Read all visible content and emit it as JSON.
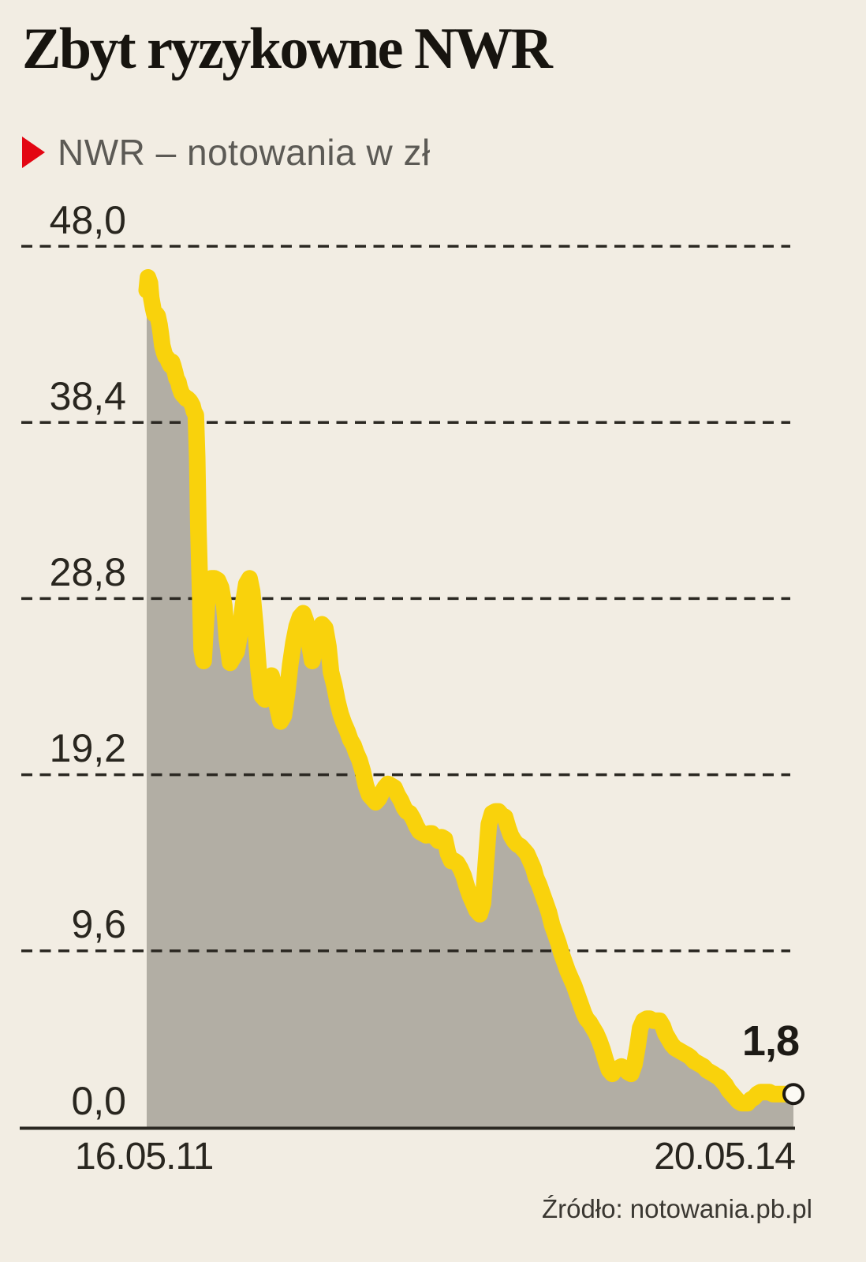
{
  "header": {
    "title": "Zbyt ryzykowne NWR"
  },
  "legend": {
    "label": "NWR – notowania w zł"
  },
  "source": "Źródło: notowania.pb.pl",
  "colors": {
    "background": "#F2EDE3",
    "line_yellow": "#F9D20C",
    "area_gray": "#B2AEA4",
    "bullet_red": "#E30613",
    "ink": "#29261F"
  },
  "chart_data": {
    "type": "area",
    "title": "NWR – notowania w zł",
    "series_name": "NWR",
    "ylabel": "notowania w zł",
    "ylim": [
      0,
      48
    ],
    "grid": "dashed-horizontal",
    "yticks": [
      {
        "value": 48.0,
        "label": "48,0"
      },
      {
        "value": 38.4,
        "label": "38,4"
      },
      {
        "value": 28.8,
        "label": "28,8"
      },
      {
        "value": 19.2,
        "label": "19,2"
      },
      {
        "value": 9.6,
        "label": "9,6"
      },
      {
        "value": 0.0,
        "label": "0,0"
      }
    ],
    "x_start_label": "16.05.11",
    "x_end_label": "20.05.14",
    "end_value": 1.8,
    "end_value_label": "1,8",
    "points": [
      [
        0,
        45.6
      ],
      [
        0.002,
        46.3
      ],
      [
        0.005,
        46
      ],
      [
        0.007,
        45.2
      ],
      [
        0.01,
        44.6
      ],
      [
        0.012,
        44.3
      ],
      [
        0.015,
        44.3
      ],
      [
        0.017,
        44.2
      ],
      [
        0.02,
        43.7
      ],
      [
        0.022,
        43.2
      ],
      [
        0.024,
        42.6
      ],
      [
        0.027,
        42.2
      ],
      [
        0.029,
        42
      ],
      [
        0.032,
        41.9
      ],
      [
        0.034,
        41.7
      ],
      [
        0.037,
        41.5
      ],
      [
        0.039,
        41.7
      ],
      [
        0.041,
        41.5
      ],
      [
        0.044,
        41.1
      ],
      [
        0.046,
        40.8
      ],
      [
        0.049,
        40.6
      ],
      [
        0.051,
        40.3
      ],
      [
        0.054,
        40
      ],
      [
        0.056,
        39.9
      ],
      [
        0.059,
        39.8
      ],
      [
        0.061,
        39.7
      ],
      [
        0.063,
        39.7
      ],
      [
        0.066,
        39.6
      ],
      [
        0.068,
        39.5
      ],
      [
        0.071,
        39.3
      ],
      [
        0.073,
        39
      ],
      [
        0.076,
        38.8
      ],
      [
        0.078,
        36.5
      ],
      [
        0.08,
        32.5
      ],
      [
        0.083,
        28.5
      ],
      [
        0.085,
        26
      ],
      [
        0.088,
        25.4
      ],
      [
        0.09,
        26.6
      ],
      [
        0.093,
        28.4
      ],
      [
        0.095,
        29.4
      ],
      [
        0.098,
        29.8
      ],
      [
        0.1,
        29.9
      ],
      [
        0.105,
        29.9
      ],
      [
        0.11,
        29.8
      ],
      [
        0.115,
        29.4
      ],
      [
        0.12,
        28.4
      ],
      [
        0.124,
        26.6
      ],
      [
        0.129,
        25.3
      ],
      [
        0.134,
        25.6
      ],
      [
        0.139,
        25.9
      ],
      [
        0.144,
        26.9
      ],
      [
        0.149,
        28.5
      ],
      [
        0.154,
        29.6
      ],
      [
        0.159,
        29.9
      ],
      [
        0.163,
        29.2
      ],
      [
        0.168,
        27.3
      ],
      [
        0.173,
        24.9
      ],
      [
        0.178,
        23.5
      ],
      [
        0.183,
        23.3
      ],
      [
        0.188,
        24.2
      ],
      [
        0.193,
        24.6
      ],
      [
        0.198,
        23.9
      ],
      [
        0.202,
        22.9
      ],
      [
        0.207,
        22.1
      ],
      [
        0.212,
        22.4
      ],
      [
        0.217,
        23.6
      ],
      [
        0.222,
        25.2
      ],
      [
        0.227,
        26.4
      ],
      [
        0.232,
        27.3
      ],
      [
        0.237,
        27.8
      ],
      [
        0.242,
        28
      ],
      [
        0.246,
        27.6
      ],
      [
        0.251,
        26.4
      ],
      [
        0.256,
        25.4
      ],
      [
        0.261,
        26.2
      ],
      [
        0.266,
        27.1
      ],
      [
        0.271,
        27.4
      ],
      [
        0.276,
        27.2
      ],
      [
        0.281,
        26.2
      ],
      [
        0.285,
        24.8
      ],
      [
        0.29,
        24.1
      ],
      [
        0.295,
        23.2
      ],
      [
        0.3,
        22.5
      ],
      [
        0.305,
        22
      ],
      [
        0.31,
        21.6
      ],
      [
        0.315,
        21.1
      ],
      [
        0.32,
        20.8
      ],
      [
        0.324,
        20.4
      ],
      [
        0.329,
        20
      ],
      [
        0.334,
        19.4
      ],
      [
        0.339,
        18.6
      ],
      [
        0.344,
        18.1
      ],
      [
        0.349,
        17.9
      ],
      [
        0.354,
        17.7
      ],
      [
        0.359,
        17.9
      ],
      [
        0.363,
        18.2
      ],
      [
        0.368,
        18.5
      ],
      [
        0.373,
        18.7
      ],
      [
        0.378,
        18.6
      ],
      [
        0.383,
        18.5
      ],
      [
        0.388,
        18.1
      ],
      [
        0.393,
        17.8
      ],
      [
        0.398,
        17.4
      ],
      [
        0.402,
        17.2
      ],
      [
        0.407,
        17.1
      ],
      [
        0.412,
        16.8
      ],
      [
        0.417,
        16.4
      ],
      [
        0.422,
        16.1
      ],
      [
        0.427,
        16
      ],
      [
        0.432,
        15.9
      ],
      [
        0.437,
        16
      ],
      [
        0.441,
        16
      ],
      [
        0.446,
        15.8
      ],
      [
        0.451,
        15.6
      ],
      [
        0.456,
        15.8
      ],
      [
        0.461,
        15.7
      ],
      [
        0.466,
        14.9
      ],
      [
        0.471,
        14.5
      ],
      [
        0.476,
        14.5
      ],
      [
        0.48,
        14.4
      ],
      [
        0.485,
        14.1
      ],
      [
        0.49,
        13.7
      ],
      [
        0.495,
        13.1
      ],
      [
        0.5,
        12.6
      ],
      [
        0.505,
        12.2
      ],
      [
        0.51,
        11.8
      ],
      [
        0.515,
        11.6
      ],
      [
        0.52,
        12.2
      ],
      [
        0.524,
        14.2
      ],
      [
        0.529,
        16.5
      ],
      [
        0.534,
        17.1
      ],
      [
        0.539,
        17.2
      ],
      [
        0.544,
        17.2
      ],
      [
        0.549,
        17
      ],
      [
        0.554,
        16.9
      ],
      [
        0.559,
        16.3
      ],
      [
        0.563,
        15.9
      ],
      [
        0.568,
        15.6
      ],
      [
        0.573,
        15.4
      ],
      [
        0.578,
        15.3
      ],
      [
        0.583,
        15.1
      ],
      [
        0.588,
        14.9
      ],
      [
        0.593,
        14.5
      ],
      [
        0.598,
        14.1
      ],
      [
        0.602,
        13.6
      ],
      [
        0.607,
        13.2
      ],
      [
        0.612,
        12.7
      ],
      [
        0.617,
        12.2
      ],
      [
        0.622,
        11.7
      ],
      [
        0.627,
        11
      ],
      [
        0.632,
        10.5
      ],
      [
        0.637,
        10
      ],
      [
        0.641,
        9.5
      ],
      [
        0.646,
        9
      ],
      [
        0.651,
        8.5
      ],
      [
        0.656,
        8.1
      ],
      [
        0.661,
        7.7
      ],
      [
        0.666,
        7.2
      ],
      [
        0.671,
        6.7
      ],
      [
        0.676,
        6.2
      ],
      [
        0.68,
        5.9
      ],
      [
        0.685,
        5.7
      ],
      [
        0.69,
        5.4
      ],
      [
        0.695,
        5.1
      ],
      [
        0.7,
        4.7
      ],
      [
        0.705,
        4.2
      ],
      [
        0.71,
        3.6
      ],
      [
        0.715,
        3.1
      ],
      [
        0.72,
        2.9
      ],
      [
        0.724,
        3.1
      ],
      [
        0.729,
        3.2
      ],
      [
        0.734,
        3.3
      ],
      [
        0.739,
        3.2
      ],
      [
        0.744,
        3
      ],
      [
        0.749,
        2.9
      ],
      [
        0.754,
        3.4
      ],
      [
        0.759,
        4.4
      ],
      [
        0.763,
        5.4
      ],
      [
        0.768,
        5.8
      ],
      [
        0.773,
        5.9
      ],
      [
        0.778,
        5.9
      ],
      [
        0.783,
        5.8
      ],
      [
        0.788,
        5.8
      ],
      [
        0.793,
        5.8
      ],
      [
        0.798,
        5.5
      ],
      [
        0.802,
        5.1
      ],
      [
        0.807,
        4.8
      ],
      [
        0.812,
        4.5
      ],
      [
        0.817,
        4.3
      ],
      [
        0.822,
        4.2
      ],
      [
        0.827,
        4.1
      ],
      [
        0.832,
        4
      ],
      [
        0.837,
        3.9
      ],
      [
        0.841,
        3.8
      ],
      [
        0.846,
        3.6
      ],
      [
        0.851,
        3.5
      ],
      [
        0.856,
        3.4
      ],
      [
        0.861,
        3.3
      ],
      [
        0.866,
        3.1
      ],
      [
        0.871,
        3
      ],
      [
        0.876,
        2.9
      ],
      [
        0.88,
        2.8
      ],
      [
        0.885,
        2.7
      ],
      [
        0.89,
        2.5
      ],
      [
        0.895,
        2.3
      ],
      [
        0.9,
        2
      ],
      [
        0.905,
        1.8
      ],
      [
        0.91,
        1.6
      ],
      [
        0.915,
        1.4
      ],
      [
        0.92,
        1.3
      ],
      [
        0.924,
        1.3
      ],
      [
        0.929,
        1.3
      ],
      [
        0.934,
        1.5
      ],
      [
        0.939,
        1.6
      ],
      [
        0.944,
        1.8
      ],
      [
        0.949,
        1.9
      ],
      [
        0.954,
        1.9
      ],
      [
        0.959,
        1.9
      ],
      [
        0.963,
        1.9
      ],
      [
        0.968,
        1.8
      ],
      [
        0.973,
        1.8
      ],
      [
        0.978,
        1.8
      ],
      [
        0.983,
        1.8
      ],
      [
        0.988,
        1.8
      ],
      [
        0.993,
        1.8
      ],
      [
        0.996,
        1.8
      ],
      [
        1,
        1.8
      ]
    ]
  }
}
